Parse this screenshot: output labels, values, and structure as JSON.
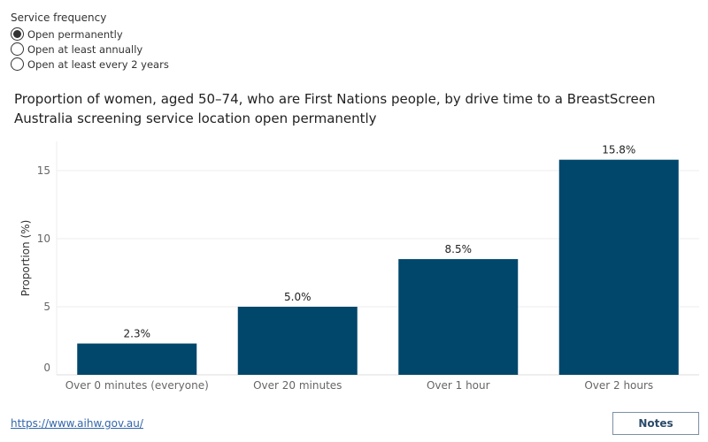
{
  "filter": {
    "title": "Service frequency",
    "options": [
      {
        "label": "Open permanently",
        "selected": true
      },
      {
        "label": "Open at least annually",
        "selected": false
      },
      {
        "label": "Open at least every 2 years",
        "selected": false
      }
    ]
  },
  "chart_data": {
    "type": "bar",
    "title": "Proportion of women, aged 50–74, who are First Nations people, by drive time to a BreastScreen Australia screening service location open permanently",
    "categories": [
      "Over 0 minutes (everyone)",
      "Over 20 minutes",
      "Over 1 hour",
      "Over 2 hours"
    ],
    "values": [
      2.3,
      5.0,
      8.5,
      15.8
    ],
    "data_labels": [
      "2.3%",
      "5.0%",
      "8.5%",
      "15.8%"
    ],
    "ylabel": "Proportion (%)",
    "yticks": [
      0,
      5,
      10,
      15
    ],
    "ylim": [
      0,
      17
    ],
    "grid": true,
    "bar_color": "#00476b"
  },
  "footer": {
    "link": "https://www.aihw.gov.au/",
    "notes_label": "Notes"
  }
}
